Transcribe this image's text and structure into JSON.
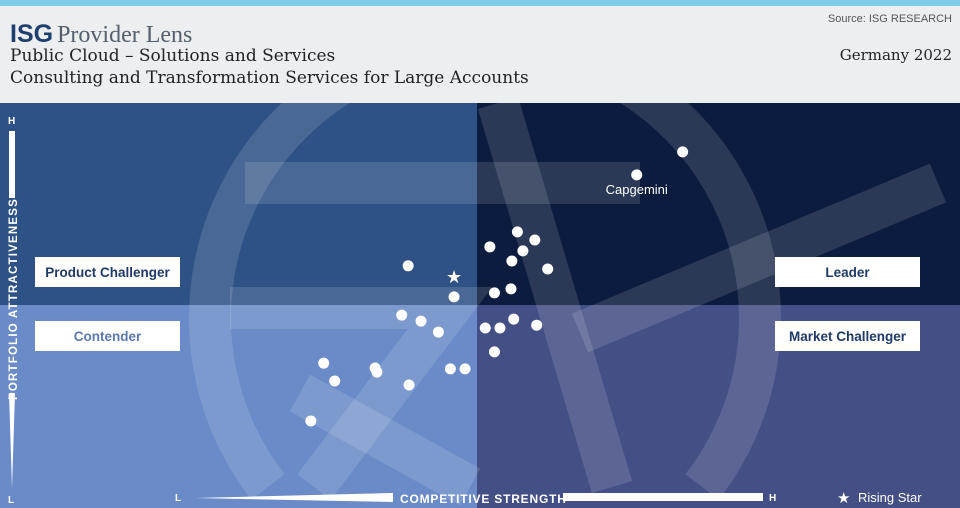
{
  "header": {
    "logo_text": "ISG Provider Lens",
    "source": "Source: ISG RESEARCH",
    "title": "Public Cloud – Solutions and Services",
    "subtitle": "Consulting and Transformation Services for Large Accounts",
    "region_year": "Germany 2022"
  },
  "colors": {
    "top_bar": "#7fcde6",
    "product_challenger": "#2e5286",
    "leader": "#0c1c3f",
    "contender": "#6a8bc8",
    "market_challenger": "#444f85",
    "marker": "#ffffff"
  },
  "chart_data": {
    "type": "scatter",
    "xlabel": "COMPETITIVE STRENGTH",
    "ylabel": "PORTFOLIO ATTRACTIVENESS",
    "x_ticks": {
      "low": "L",
      "high": "H"
    },
    "y_ticks": {
      "low": "L",
      "high": "H"
    },
    "xlim": [
      0,
      100
    ],
    "ylim": [
      0,
      100
    ],
    "grid": false,
    "quadrants": {
      "top_left": "Product Challenger",
      "top_right": "Leader",
      "bottom_left": "Contender",
      "bottom_right": "Market Challenger"
    },
    "legend": {
      "rising_star": "Rising Star",
      "placement": "bottom-right"
    },
    "points": [
      {
        "x": 72.4,
        "y": 87.9,
        "label": ""
      },
      {
        "x": 67.4,
        "y": 82.2,
        "label": "Capgemini"
      },
      {
        "x": 54.4,
        "y": 68.1
      },
      {
        "x": 56.3,
        "y": 66.1
      },
      {
        "x": 51.4,
        "y": 64.4
      },
      {
        "x": 55.0,
        "y": 63.4
      },
      {
        "x": 53.8,
        "y": 60.9
      },
      {
        "x": 57.7,
        "y": 58.9
      },
      {
        "x": 42.5,
        "y": 59.7
      },
      {
        "x": 47.5,
        "y": 56.9,
        "rising_star": true
      },
      {
        "x": 47.5,
        "y": 52.0
      },
      {
        "x": 51.9,
        "y": 53.0
      },
      {
        "x": 53.7,
        "y": 54.0
      },
      {
        "x": 41.8,
        "y": 47.5
      },
      {
        "x": 43.9,
        "y": 46.0
      },
      {
        "x": 45.8,
        "y": 43.3
      },
      {
        "x": 50.9,
        "y": 44.3
      },
      {
        "x": 52.5,
        "y": 44.3
      },
      {
        "x": 54.0,
        "y": 46.5
      },
      {
        "x": 56.5,
        "y": 45.0
      },
      {
        "x": 51.9,
        "y": 38.4
      },
      {
        "x": 33.3,
        "y": 35.6
      },
      {
        "x": 34.5,
        "y": 31.2
      },
      {
        "x": 38.9,
        "y": 34.4
      },
      {
        "x": 39.1,
        "y": 33.4
      },
      {
        "x": 42.6,
        "y": 30.2
      },
      {
        "x": 47.1,
        "y": 34.2
      },
      {
        "x": 48.7,
        "y": 34.2
      },
      {
        "x": 31.9,
        "y": 21.3
      }
    ]
  }
}
